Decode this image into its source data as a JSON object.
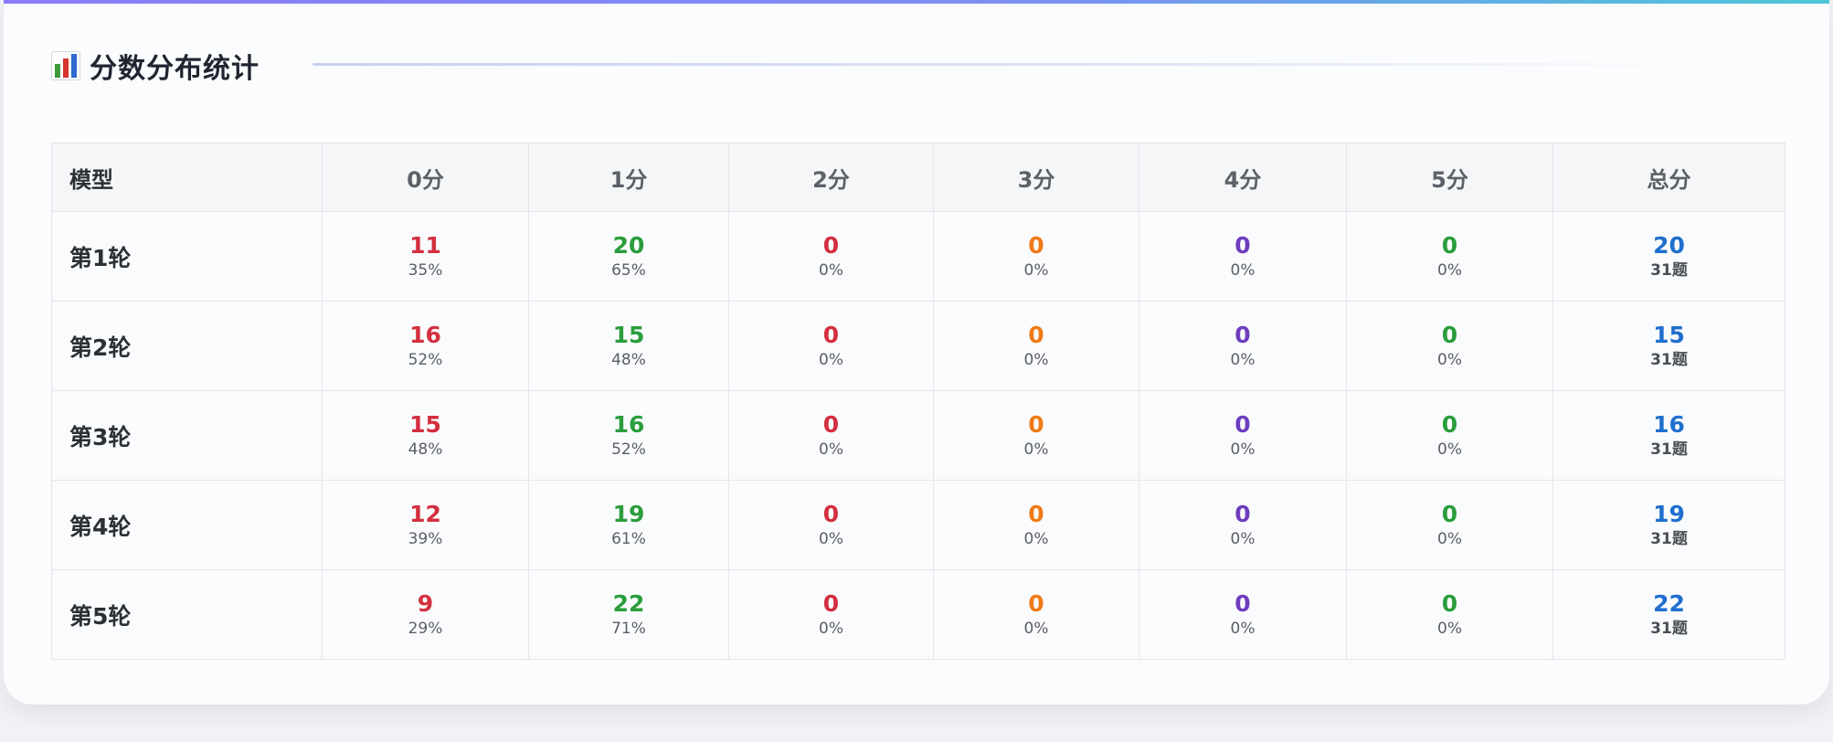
{
  "title": "分数分布统计",
  "icon": "bar-chart-icon",
  "colors": {
    "score0": "#d32f3f",
    "score1": "#2a9d3c",
    "score2": "#d32f3f",
    "score3": "#f07a16",
    "score4": "#6d3dbd",
    "score5": "#2a9d3c",
    "total": "#1f6fce",
    "accent_start": "#8b7cf6",
    "accent_end": "#4dc6d8"
  },
  "table": {
    "headers": [
      "模型",
      "0分",
      "1分",
      "2分",
      "3分",
      "4分",
      "5分",
      "总分"
    ],
    "rows": [
      {
        "label": "第1轮",
        "scores": [
          {
            "count": "11",
            "pct": "35%"
          },
          {
            "count": "20",
            "pct": "65%"
          },
          {
            "count": "0",
            "pct": "0%"
          },
          {
            "count": "0",
            "pct": "0%"
          },
          {
            "count": "0",
            "pct": "0%"
          },
          {
            "count": "0",
            "pct": "0%"
          }
        ],
        "total": "20",
        "questions": "31题"
      },
      {
        "label": "第2轮",
        "scores": [
          {
            "count": "16",
            "pct": "52%"
          },
          {
            "count": "15",
            "pct": "48%"
          },
          {
            "count": "0",
            "pct": "0%"
          },
          {
            "count": "0",
            "pct": "0%"
          },
          {
            "count": "0",
            "pct": "0%"
          },
          {
            "count": "0",
            "pct": "0%"
          }
        ],
        "total": "15",
        "questions": "31题"
      },
      {
        "label": "第3轮",
        "scores": [
          {
            "count": "15",
            "pct": "48%"
          },
          {
            "count": "16",
            "pct": "52%"
          },
          {
            "count": "0",
            "pct": "0%"
          },
          {
            "count": "0",
            "pct": "0%"
          },
          {
            "count": "0",
            "pct": "0%"
          },
          {
            "count": "0",
            "pct": "0%"
          }
        ],
        "total": "16",
        "questions": "31题"
      },
      {
        "label": "第4轮",
        "scores": [
          {
            "count": "12",
            "pct": "39%"
          },
          {
            "count": "19",
            "pct": "61%"
          },
          {
            "count": "0",
            "pct": "0%"
          },
          {
            "count": "0",
            "pct": "0%"
          },
          {
            "count": "0",
            "pct": "0%"
          },
          {
            "count": "0",
            "pct": "0%"
          }
        ],
        "total": "19",
        "questions": "31题"
      },
      {
        "label": "第5轮",
        "scores": [
          {
            "count": "9",
            "pct": "29%"
          },
          {
            "count": "22",
            "pct": "71%"
          },
          {
            "count": "0",
            "pct": "0%"
          },
          {
            "count": "0",
            "pct": "0%"
          },
          {
            "count": "0",
            "pct": "0%"
          },
          {
            "count": "0",
            "pct": "0%"
          }
        ],
        "total": "22",
        "questions": "31题"
      }
    ]
  }
}
